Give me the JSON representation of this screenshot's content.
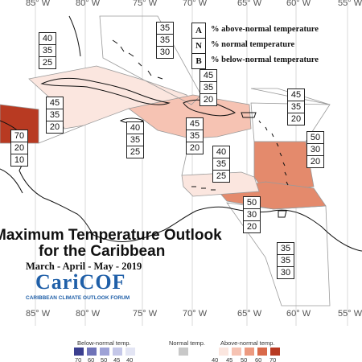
{
  "map": {
    "title_line1": "Maximum Temperature Outlook",
    "title_line2": "for the Caribbean",
    "period": "March - April - May - 2019",
    "logo_text": "CariCOF",
    "logo_subtitle": "CARIBBEAN CLIMATE OUTLOOK FORUM"
  },
  "longitudes": [
    "85° W",
    "80° W",
    "75° W",
    "70° W",
    "65° W",
    "60° W",
    "55° W"
  ],
  "legend": [
    {
      "key": "A",
      "text": "% above-normal temperature"
    },
    {
      "key": "N",
      "text": "% normal temperature"
    },
    {
      "key": "B",
      "text": "% below-normal temperature"
    }
  ],
  "probability_boxes": [
    {
      "id": "bahamas-east",
      "values": [
        "35",
        "35",
        "30"
      ]
    },
    {
      "id": "bahamas-west",
      "values": [
        "40",
        "35",
        "25"
      ]
    },
    {
      "id": "turks-caicos",
      "values": [
        "45",
        "35",
        "20"
      ]
    },
    {
      "id": "cuba",
      "values": [
        "45",
        "35",
        "20"
      ]
    },
    {
      "id": "lesser-antilles-north",
      "values": [
        "45",
        "35",
        "20"
      ]
    },
    {
      "id": "belize",
      "values": [
        "70",
        "20",
        "10"
      ]
    },
    {
      "id": "jamaica",
      "values": [
        "40",
        "35",
        "25"
      ]
    },
    {
      "id": "hispaniola",
      "values": [
        "45",
        "35",
        "20"
      ]
    },
    {
      "id": "lesser-antilles-south",
      "values": [
        "50",
        "30",
        "20"
      ]
    },
    {
      "id": "abc-islands",
      "values": [
        "40",
        "35",
        "25"
      ]
    },
    {
      "id": "trinidad",
      "values": [
        "50",
        "30",
        "20"
      ]
    },
    {
      "id": "guianas",
      "values": [
        "35",
        "35",
        "30"
      ]
    }
  ],
  "colorbar": {
    "below_label": "Below-normal temp.",
    "normal_label": "Normal temp.",
    "above_label": "Above-normal temp.",
    "below_ticks": [
      "70",
      "60",
      "50",
      "45",
      "40"
    ],
    "above_ticks": [
      "40",
      "45",
      "50",
      "60",
      "70"
    ],
    "below_colors": [
      "#3b3f8f",
      "#6f73b8",
      "#9ea2d6",
      "#c4c7e8",
      "#e3e5f4"
    ],
    "normal_color": "#c8c8c8",
    "above_colors": [
      "#fbe6df",
      "#f6c3b3",
      "#ec9a80",
      "#d96a4a",
      "#b83a22"
    ]
  },
  "colors": {
    "above_40": "#fbe6df",
    "above_45": "#f6c3b3",
    "above_50": "#e48a6c",
    "above_70": "#b83a22",
    "coast": "#111111",
    "region_outline": "#9a9a9a"
  }
}
